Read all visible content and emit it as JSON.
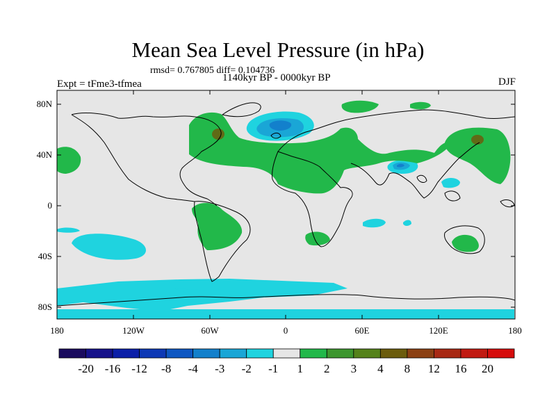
{
  "title": "Mean Sea Level Pressure (in hPa)",
  "stats": "rmsd= 0.767805 diff= 0.104736",
  "subtitle": "1140kyr BP - 0000kyr BP",
  "experiment": "Expt = tFme3-tfmea",
  "season": "DJF",
  "axes": {
    "x_ticks": [
      "180",
      "120W",
      "60W",
      "0",
      "60E",
      "120E",
      "180"
    ],
    "y_ticks": [
      "80N",
      "40N",
      "0",
      "40S",
      "80S"
    ]
  },
  "colorbar": {
    "labels": [
      "-20",
      "-16",
      "-12",
      "-8",
      "-4",
      "-3",
      "-2",
      "-1",
      "1",
      "2",
      "3",
      "4",
      "8",
      "12",
      "16",
      "20"
    ],
    "colors": [
      "#1a0b5e",
      "#16128a",
      "#0b1fa8",
      "#0d38b5",
      "#0e57c2",
      "#1380cc",
      "#1aa6d6",
      "#1fd3df",
      "#e6e6e6",
      "#22b84a",
      "#3d962f",
      "#55821b",
      "#6b5c0d",
      "#8b4013",
      "#a82914",
      "#c11a12",
      "#d60d0d"
    ]
  },
  "colors": {
    "background": "#e6e6e6",
    "positive_1": "#22b84a",
    "positive_high": "#6b5c0d",
    "negative_1": "#1fd3df",
    "negative_2": "#1aa6d6",
    "negative_3": "#1380cc"
  }
}
